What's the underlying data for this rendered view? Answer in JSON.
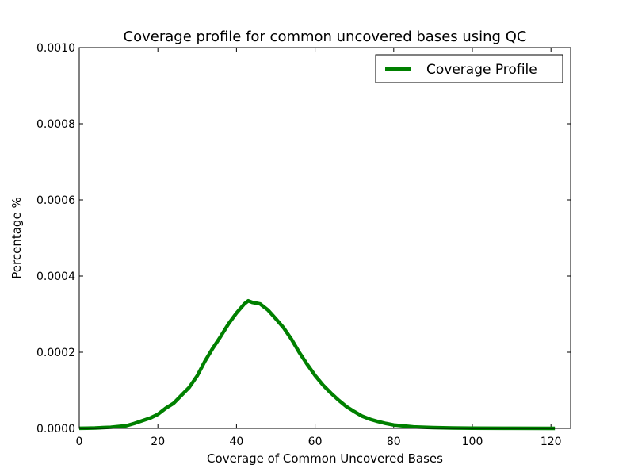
{
  "chart_data": {
    "type": "line",
    "title": "Coverage profile for common uncovered bases using QC",
    "xlabel": "Coverage of Common Uncovered Bases",
    "ylabel": "Percentage %",
    "xlim": [
      0,
      125
    ],
    "ylim": [
      0,
      0.001
    ],
    "x_ticks": [
      0,
      20,
      40,
      60,
      80,
      100,
      120
    ],
    "x_tick_labels": [
      "0",
      "20",
      "40",
      "60",
      "80",
      "100",
      "120"
    ],
    "y_ticks": [
      0,
      0.0002,
      0.0004,
      0.0006,
      0.0008,
      0.001
    ],
    "y_tick_labels": [
      "0.0000",
      "0.0002",
      "0.0004",
      "0.0006",
      "0.0008",
      "0.0010"
    ],
    "grid": false,
    "legend_position": "top-right",
    "series": [
      {
        "name": "Coverage Profile",
        "color": "#008000",
        "x": [
          0,
          2,
          4,
          6,
          8,
          10,
          12,
          14,
          16,
          18,
          20,
          22,
          24,
          26,
          28,
          30,
          32,
          34,
          36,
          38,
          40,
          42,
          43,
          44,
          46,
          48,
          50,
          52,
          54,
          56,
          58,
          60,
          62,
          64,
          66,
          68,
          70,
          72,
          74,
          76,
          78,
          80,
          85,
          90,
          95,
          100,
          110,
          121
        ],
        "y": [
          2e-07,
          5e-07,
          1e-06,
          2e-06,
          3e-06,
          5e-06,
          7e-06,
          1.3e-05,
          2e-05,
          2.7e-05,
          3.7e-05,
          5.3e-05,
          6.6e-05,
          8.7e-05,
          0.000108,
          0.000138,
          0.000177,
          0.000211,
          0.000242,
          0.000275,
          0.000303,
          0.000327,
          0.000335,
          0.000331,
          0.000327,
          0.000311,
          0.000288,
          0.000264,
          0.000234,
          0.000199,
          0.000168,
          0.000139,
          0.000114,
          9.3e-05,
          7.4e-05,
          5.7e-05,
          4.4e-05,
          3.2e-05,
          2.4e-05,
          1.8e-05,
          1.3e-05,
          9e-06,
          4e-06,
          2e-06,
          1e-06,
          5e-07,
          2e-07,
          1e-07
        ]
      }
    ]
  }
}
